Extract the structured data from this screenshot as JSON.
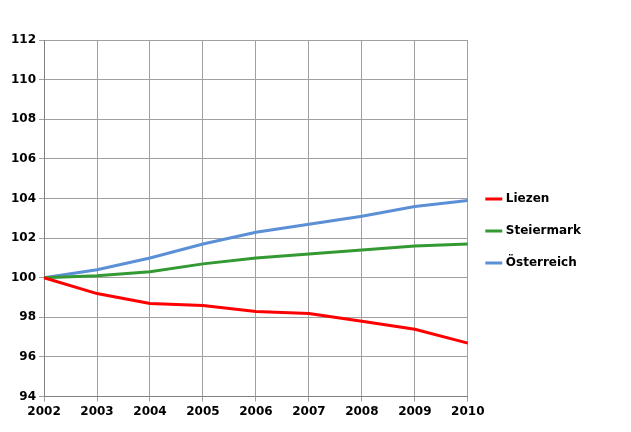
{
  "chart_data": {
    "type": "line",
    "categories": [
      "2002",
      "2003",
      "2004",
      "2005",
      "2006",
      "2007",
      "2008",
      "2009",
      "2010"
    ],
    "series": [
      {
        "name": "Liezen",
        "color": "#ff0000",
        "values": [
          100,
          99.2,
          98.7,
          98.6,
          98.3,
          98.2,
          97.8,
          97.4,
          96.7
        ]
      },
      {
        "name": "Steiermark",
        "color": "#339933",
        "values": [
          100,
          100.1,
          100.3,
          100.7,
          101.0,
          101.2,
          101.4,
          101.6,
          101.7
        ]
      },
      {
        "name": "Österreich",
        "color": "#5b8fd6",
        "values": [
          100,
          100.4,
          101.0,
          101.7,
          102.3,
          102.7,
          103.1,
          103.6,
          103.9
        ]
      }
    ],
    "ylim": [
      94,
      112
    ],
    "yticks": [
      94,
      96,
      98,
      100,
      102,
      104,
      106,
      108,
      110,
      112
    ],
    "grid": true,
    "legend": "right"
  }
}
